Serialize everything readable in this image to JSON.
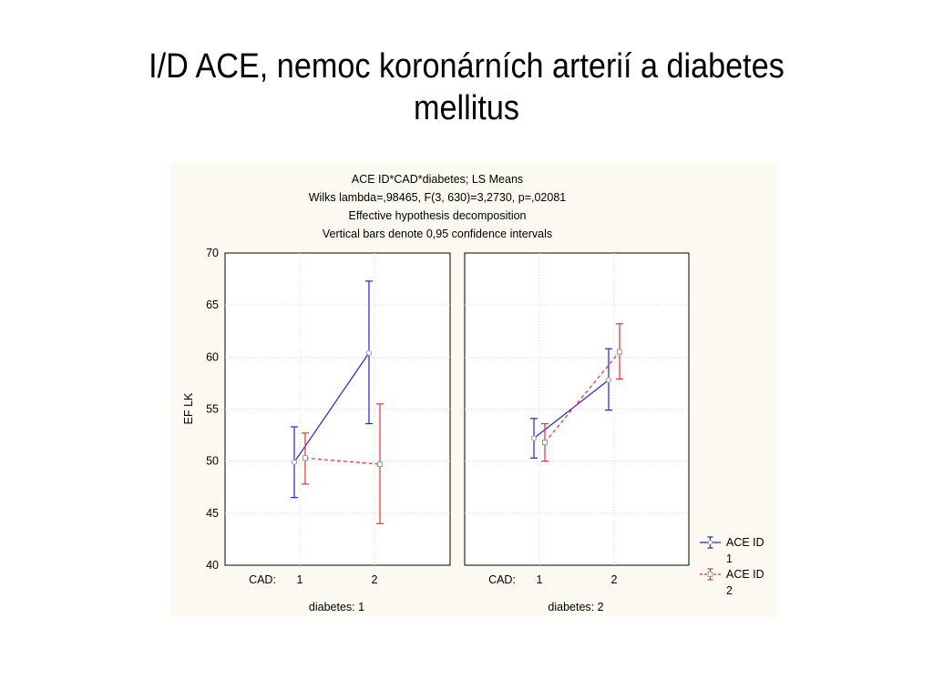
{
  "slide": {
    "title_line1": "I/D ACE, nemoc koronárních arterií a diabetes",
    "title_line2": "mellitus"
  },
  "chart_data": {
    "type": "line",
    "header_lines": [
      "ACE ID*CAD*diabetes; LS Means",
      "Wilks lambda=,98465, F(3, 630)=3,2730, p=,02081",
      "Effective hypothesis decomposition",
      "Vertical bars denote 0,95 confidence intervals"
    ],
    "ylabel": "EF LK",
    "ylim": [
      40,
      70
    ],
    "yticks": [
      40,
      45,
      50,
      55,
      60,
      65,
      70
    ],
    "x_factor_label": "CAD:",
    "categories": [
      "1",
      "2"
    ],
    "grid": true,
    "legend_position": "bottom-right",
    "colors": {
      "ace_1": "#2323c8",
      "ace_2": "#e03232",
      "background": "#fcfaf0"
    },
    "panels": [
      {
        "label": "diabetes: 1",
        "series": [
          {
            "legend_title": "ACE ID",
            "legend_value": "1",
            "color": "#2323c8",
            "dash": false,
            "values": [
              49.9,
              60.4
            ],
            "ci_low": [
              46.5,
              53.6
            ],
            "ci_high": [
              53.3,
              67.3
            ]
          },
          {
            "legend_title": "ACE ID",
            "legend_value": "2",
            "color": "#e03232",
            "dash": true,
            "values": [
              50.3,
              49.7
            ],
            "ci_low": [
              47.8,
              44.0
            ],
            "ci_high": [
              52.7,
              55.5
            ]
          }
        ]
      },
      {
        "label": "diabetes: 2",
        "series": [
          {
            "legend_title": "ACE ID",
            "legend_value": "1",
            "color": "#2323c8",
            "dash": false,
            "values": [
              52.2,
              57.8
            ],
            "ci_low": [
              50.3,
              54.9
            ],
            "ci_high": [
              54.1,
              60.8
            ]
          },
          {
            "legend_title": "ACE ID",
            "legend_value": "2",
            "color": "#e03232",
            "dash": true,
            "values": [
              51.8,
              60.5
            ],
            "ci_low": [
              50.0,
              57.9
            ],
            "ci_high": [
              53.6,
              63.2
            ]
          }
        ]
      }
    ]
  }
}
